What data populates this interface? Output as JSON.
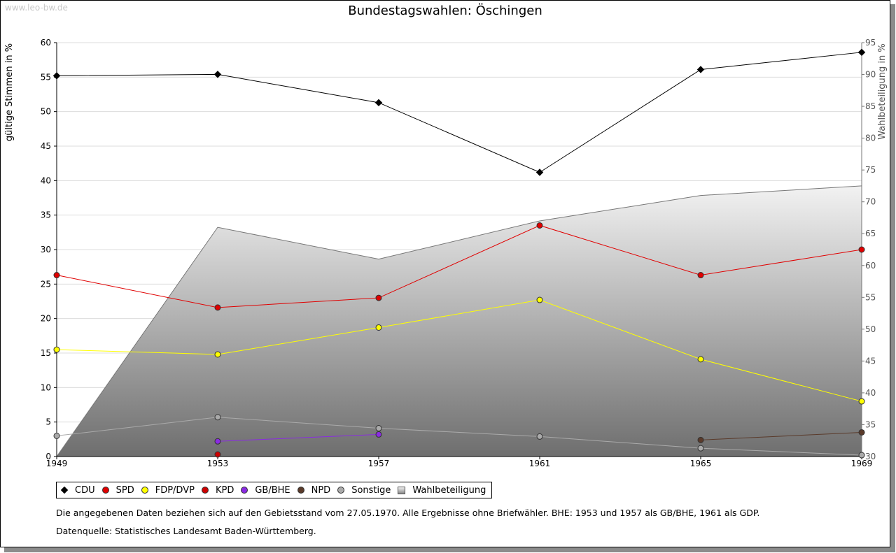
{
  "watermark": "www.leo-bw.de",
  "title": "Bundestagswahlen: Öschingen",
  "chart_data": {
    "type": "line",
    "title": "Bundestagswahlen: Öschingen",
    "ylabel": "gültige Stimmen in %",
    "y2label": "Wahlbeteiligung in %",
    "x": [
      1949,
      1953,
      1957,
      1961,
      1965,
      1969
    ],
    "ylim": [
      0,
      60
    ],
    "y2lim": [
      30,
      95
    ],
    "yticks": [
      0,
      5,
      10,
      15,
      20,
      25,
      30,
      35,
      40,
      45,
      50,
      55,
      60
    ],
    "y2ticks": [
      30,
      35,
      40,
      45,
      50,
      55,
      60,
      65,
      70,
      75,
      80,
      85,
      90,
      95
    ],
    "grid": true,
    "legend_position": "bottom",
    "series": [
      {
        "name": "CDU",
        "color": "#000000",
        "marker": "diamond",
        "values": [
          55.2,
          55.4,
          51.3,
          41.2,
          56.1,
          58.6
        ]
      },
      {
        "name": "SPD",
        "color": "#e00000",
        "marker": "circle",
        "values": [
          26.3,
          21.6,
          23.0,
          33.5,
          26.3,
          30.0
        ]
      },
      {
        "name": "FDP/DVP",
        "color": "#ffff00",
        "marker": "circle",
        "values": [
          15.5,
          14.8,
          18.7,
          22.7,
          14.1,
          8.0
        ]
      },
      {
        "name": "KPD",
        "color": "#cc0000",
        "marker": "circle",
        "values": [
          null,
          0.3,
          null,
          null,
          null,
          null
        ]
      },
      {
        "name": "GB/BHE",
        "color": "#8a2be2",
        "marker": "circle",
        "values": [
          null,
          2.2,
          3.2,
          null,
          null,
          null
        ]
      },
      {
        "name": "NPD",
        "color": "#5a3a2a",
        "marker": "circle",
        "values": [
          null,
          null,
          null,
          null,
          2.4,
          3.5
        ]
      },
      {
        "name": "Sonstige",
        "color": "#aaaaaa",
        "marker": "circle",
        "values": [
          3.0,
          5.7,
          4.1,
          2.9,
          1.2,
          0.2
        ]
      }
    ],
    "area_series": {
      "name": "Wahlbeteiligung",
      "axis": "right",
      "values": [
        30.0,
        66.0,
        61.0,
        67.0,
        71.0,
        72.5
      ]
    }
  },
  "legend": [
    "CDU",
    "SPD",
    "FDP/DVP",
    "KPD",
    "GB/BHE",
    "NPD",
    "Sonstige",
    "Wahlbeteiligung"
  ],
  "note": "Die angegebenen Daten beziehen sich auf den Gebietsstand vom 27.05.1970. Alle Ergebnisse ohne Briefwähler. BHE: 1953 und 1957 als GB/BHE, 1961 als GDP.",
  "source": "Datenquelle: Statistisches Landesamt Baden-Württemberg."
}
